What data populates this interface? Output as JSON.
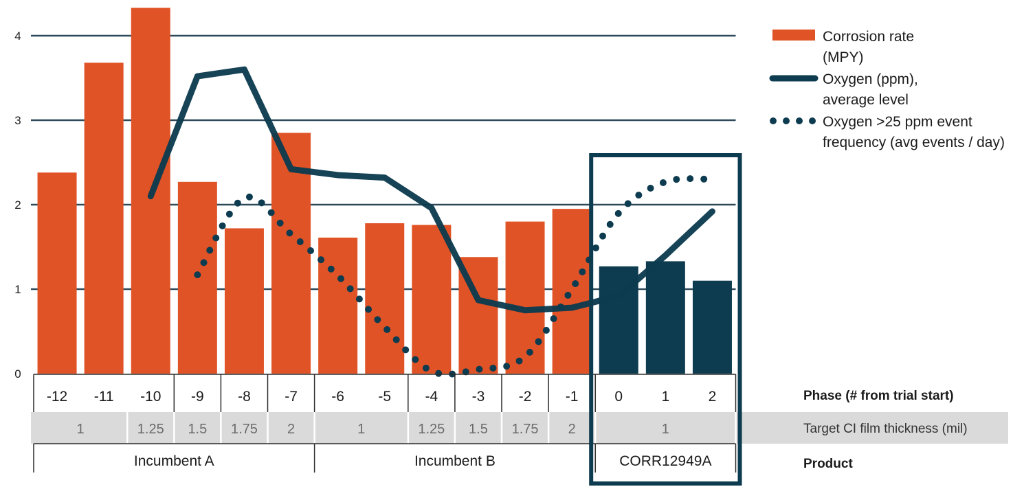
{
  "chart_data": {
    "type": "bar",
    "title": "",
    "xlabel": "",
    "ylabel": "",
    "ylim": [
      0,
      4.4
    ],
    "yticks": [
      0,
      1,
      2,
      3,
      4
    ],
    "grid": true,
    "categories": [
      "-12",
      "-11",
      "-10",
      "-9",
      "-8",
      "-7",
      "-6",
      "-5",
      "-4",
      "-3",
      "-2",
      "-1",
      "0",
      "1",
      "2"
    ],
    "series": [
      {
        "name": "Corrosion rate (MPY)",
        "kind": "bar",
        "values": [
          2.38,
          3.68,
          4.33,
          2.27,
          1.72,
          2.85,
          1.61,
          1.78,
          1.76,
          1.38,
          1.8,
          1.95,
          1.27,
          1.33,
          1.1
        ],
        "colors": [
          "#e05326",
          "#e05326",
          "#e05326",
          "#e05326",
          "#e05326",
          "#e05326",
          "#e05326",
          "#e05326",
          "#e05326",
          "#e05326",
          "#e05326",
          "#e05326",
          "#0d3b4f",
          "#0d3b4f",
          "#0d3b4f"
        ]
      },
      {
        "name": "Oxygen (ppm), average level",
        "kind": "line",
        "values": [
          null,
          null,
          2.1,
          3.52,
          3.6,
          2.42,
          2.35,
          2.32,
          1.96,
          0.87,
          0.75,
          0.78,
          0.92,
          1.4,
          1.92
        ]
      },
      {
        "name": "Oxygen >25 ppm event frequency (avg events / day)",
        "kind": "dotted-line",
        "values": [
          null,
          null,
          null,
          1.17,
          2.08,
          1.65,
          1.16,
          0.55,
          0.03,
          0.05,
          0.2,
          1.0,
          1.9,
          2.27,
          2.3
        ]
      }
    ],
    "ci_row": {
      "title": "Target CI film thickness (mil)",
      "cells": [
        {
          "label": "1",
          "span": [
            0,
            1
          ]
        },
        {
          "label": "1.25",
          "span": [
            2,
            2
          ]
        },
        {
          "label": "1.5",
          "span": [
            3,
            3
          ]
        },
        {
          "label": "1.75",
          "span": [
            4,
            4
          ]
        },
        {
          "label": "2",
          "span": [
            5,
            5
          ]
        },
        {
          "label": "1",
          "span": [
            6,
            7
          ]
        },
        {
          "label": "1.25",
          "span": [
            8,
            8
          ]
        },
        {
          "label": "1.5",
          "span": [
            9,
            9
          ]
        },
        {
          "label": "1.75",
          "span": [
            10,
            10
          ]
        },
        {
          "label": "2",
          "span": [
            11,
            11
          ]
        },
        {
          "label": "1",
          "span": [
            12,
            14
          ]
        }
      ]
    },
    "phase_row": {
      "title": "Phase (# from trial start)"
    },
    "product_row": {
      "title": "Product",
      "groups": [
        {
          "label": "Incumbent A",
          "span": [
            0,
            5
          ]
        },
        {
          "label": "Incumbent B",
          "span": [
            6,
            11
          ]
        },
        {
          "label": "CORR12949A",
          "span": [
            12,
            14
          ]
        }
      ]
    },
    "highlight": {
      "span": [
        12,
        14
      ],
      "color": "#0d3b4f"
    },
    "legend": {
      "placement": "top-right",
      "entries": [
        {
          "lines": [
            "Corrosion rate",
            "(MPY)"
          ],
          "style": "bar",
          "color": "#e05326"
        },
        {
          "lines": [
            "Oxygen (ppm),",
            "average level"
          ],
          "style": "line",
          "color": "#0d3b4f"
        },
        {
          "lines": [
            "Oxygen >25 ppm event",
            "frequency (avg events / day)"
          ],
          "style": "dots",
          "color": "#0d3b4f"
        }
      ]
    },
    "colors": {
      "bar": "#e05326",
      "accent": "#0d3b4f",
      "grid": "#2e4a5a",
      "band": "#d9dad9"
    }
  }
}
